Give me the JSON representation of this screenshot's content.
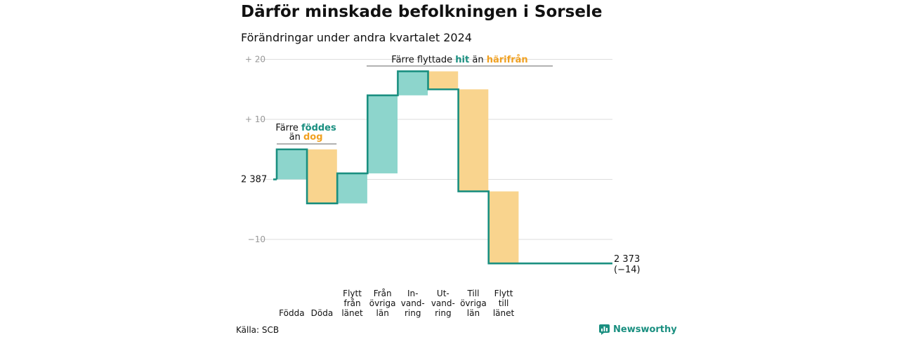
{
  "title": "Därför minskade befolkningen i Sorsele",
  "subtitle": "Förändringar under andra kvartalet 2024",
  "source": "Källa: SCB",
  "brand": "Newsworthy",
  "colors": {
    "positive": "#8dd5cc",
    "negative": "#f9d48e",
    "line": "#1a8f80",
    "grid": "#dddddd"
  },
  "chart_data": {
    "type": "waterfall",
    "start_value": 2387,
    "end_value": 2373,
    "y_ticks": [
      {
        "value": 20,
        "label": "+  20"
      },
      {
        "value": 10,
        "label": "+  10"
      },
      {
        "value": 0,
        "label": "2  387"
      },
      {
        "value": -10,
        "label": "−10"
      }
    ],
    "ylim": [
      -14,
      20
    ],
    "categories": [
      {
        "lines": [
          "Födda"
        ],
        "change": 5
      },
      {
        "lines": [
          "Döda"
        ],
        "change": -9
      },
      {
        "lines": [
          "Flytt",
          "från",
          "länet"
        ],
        "change": 5
      },
      {
        "lines": [
          "Från",
          "övriga",
          "län"
        ],
        "change": 13
      },
      {
        "lines": [
          "In-",
          "vand-",
          "ring"
        ],
        "change": 4
      },
      {
        "lines": [
          "Ut-",
          "vand-",
          "ring"
        ],
        "change": -3
      },
      {
        "lines": [
          "Till",
          "övriga",
          "län"
        ],
        "change": -17
      },
      {
        "lines": [
          "Flytt",
          "till",
          "länet"
        ],
        "change": -12
      }
    ],
    "end_label": [
      "2 373",
      "(−14)"
    ],
    "annotations": [
      {
        "parts": [
          [
            "Färre ",
            ""
          ],
          [
            "föddes",
            "teal"
          ]
        ],
        "parts2": [
          [
            "än ",
            ""
          ],
          [
            "dog",
            "orange"
          ]
        ],
        "group": [
          0,
          1
        ]
      },
      {
        "parts": [
          [
            "Färre flyttade ",
            ""
          ],
          [
            "hit",
            "teal"
          ],
          [
            "  än  ",
            ""
          ],
          [
            "härifrån",
            "orange"
          ]
        ],
        "group": [
          2,
          7
        ]
      }
    ]
  }
}
